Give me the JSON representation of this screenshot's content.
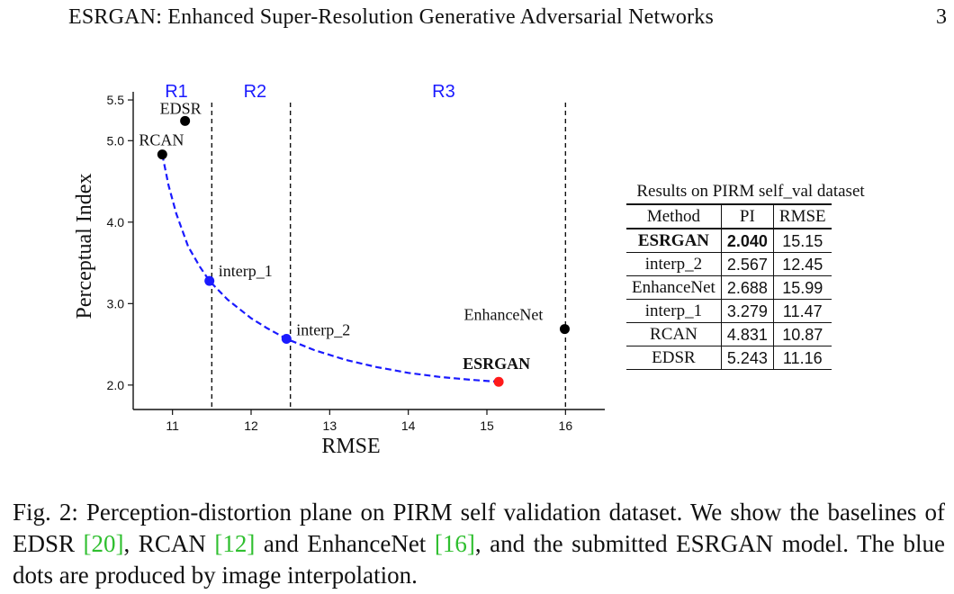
{
  "header": {
    "title": "ESRGAN: Enhanced Super-Resolution Generative Adversarial Networks",
    "page": "3"
  },
  "chart_data": {
    "type": "scatter",
    "xlabel": "RMSE",
    "ylabel": "Perceptual Index",
    "xlim": [
      10.5,
      16.5
    ],
    "ylim": [
      1.7,
      5.6
    ],
    "xticks": [
      11,
      12,
      13,
      14,
      15,
      16
    ],
    "yticks": [
      2.0,
      3.0,
      4.0,
      5.0,
      5.5
    ],
    "xtick_labels": [
      "11",
      "12",
      "13",
      "14",
      "15",
      "16"
    ],
    "ytick_labels": [
      "2.0",
      "3.0",
      "4.0",
      "5.0",
      "5.5"
    ],
    "grid": false,
    "regions": [
      {
        "label": "R1",
        "x": 11.05
      },
      {
        "label": "R2",
        "x": 12.05
      },
      {
        "label": "R3",
        "x": 14.45
      }
    ],
    "region_boundaries": [
      11.5,
      12.5,
      16.0
    ],
    "points": [
      {
        "label": "EDSR",
        "x": 11.16,
        "y": 5.243,
        "color": "#000000",
        "bold": false
      },
      {
        "label": "RCAN",
        "x": 10.87,
        "y": 4.831,
        "color": "#000000",
        "bold": false
      },
      {
        "label": "interp_1",
        "x": 11.47,
        "y": 3.279,
        "color": "#1a1aff",
        "bold": false
      },
      {
        "label": "interp_2",
        "x": 12.45,
        "y": 2.567,
        "color": "#1a1aff",
        "bold": false
      },
      {
        "label": "EnhanceNet",
        "x": 15.99,
        "y": 2.688,
        "color": "#000000",
        "bold": false
      },
      {
        "label": "ESRGAN",
        "x": 15.15,
        "y": 2.04,
        "color": "#ff1a1a",
        "bold": true
      }
    ],
    "curve": {
      "color": "#1a1aff",
      "style": "dashed",
      "x": [
        10.87,
        10.95,
        11.05,
        11.2,
        11.35,
        11.47,
        11.7,
        12.0,
        12.2,
        12.45,
        12.8,
        13.2,
        13.6,
        14.0,
        14.4,
        14.8,
        15.15
      ],
      "y": [
        4.831,
        4.45,
        4.1,
        3.7,
        3.45,
        3.279,
        3.05,
        2.82,
        2.7,
        2.567,
        2.43,
        2.31,
        2.22,
        2.15,
        2.1,
        2.065,
        2.04
      ]
    },
    "colors": {
      "region_label": "#1a1aff",
      "interp": "#1a1aff",
      "esrgan": "#ff1a1a"
    }
  },
  "table": {
    "caption": "Results on PIRM self_val dataset",
    "headers": [
      "Method",
      "PI",
      "RMSE"
    ],
    "rows": [
      {
        "method": "ESRGAN",
        "pi": "2.040",
        "rmse": "15.15"
      },
      {
        "method": "interp_2",
        "pi": "2.567",
        "rmse": "12.45"
      },
      {
        "method": "EnhanceNet",
        "pi": "2.688",
        "rmse": "15.99"
      },
      {
        "method": "interp_1",
        "pi": "3.279",
        "rmse": "11.47"
      },
      {
        "method": "RCAN",
        "pi": "4.831",
        "rmse": "10.87"
      },
      {
        "method": "EDSR",
        "pi": "5.243",
        "rmse": "11.16"
      }
    ]
  },
  "caption": {
    "prefix": "Fig. 2: Perception-distortion plane on PIRM self validation dataset. We show the baselines of EDSR ",
    "ref1": "[20]",
    "mid1": ", RCAN ",
    "ref2": "[12]",
    "mid2": " and EnhanceNet ",
    "ref3": "[16]",
    "suffix": ", and the submitted ESRGAN model. The blue dots are produced by image interpolation."
  }
}
